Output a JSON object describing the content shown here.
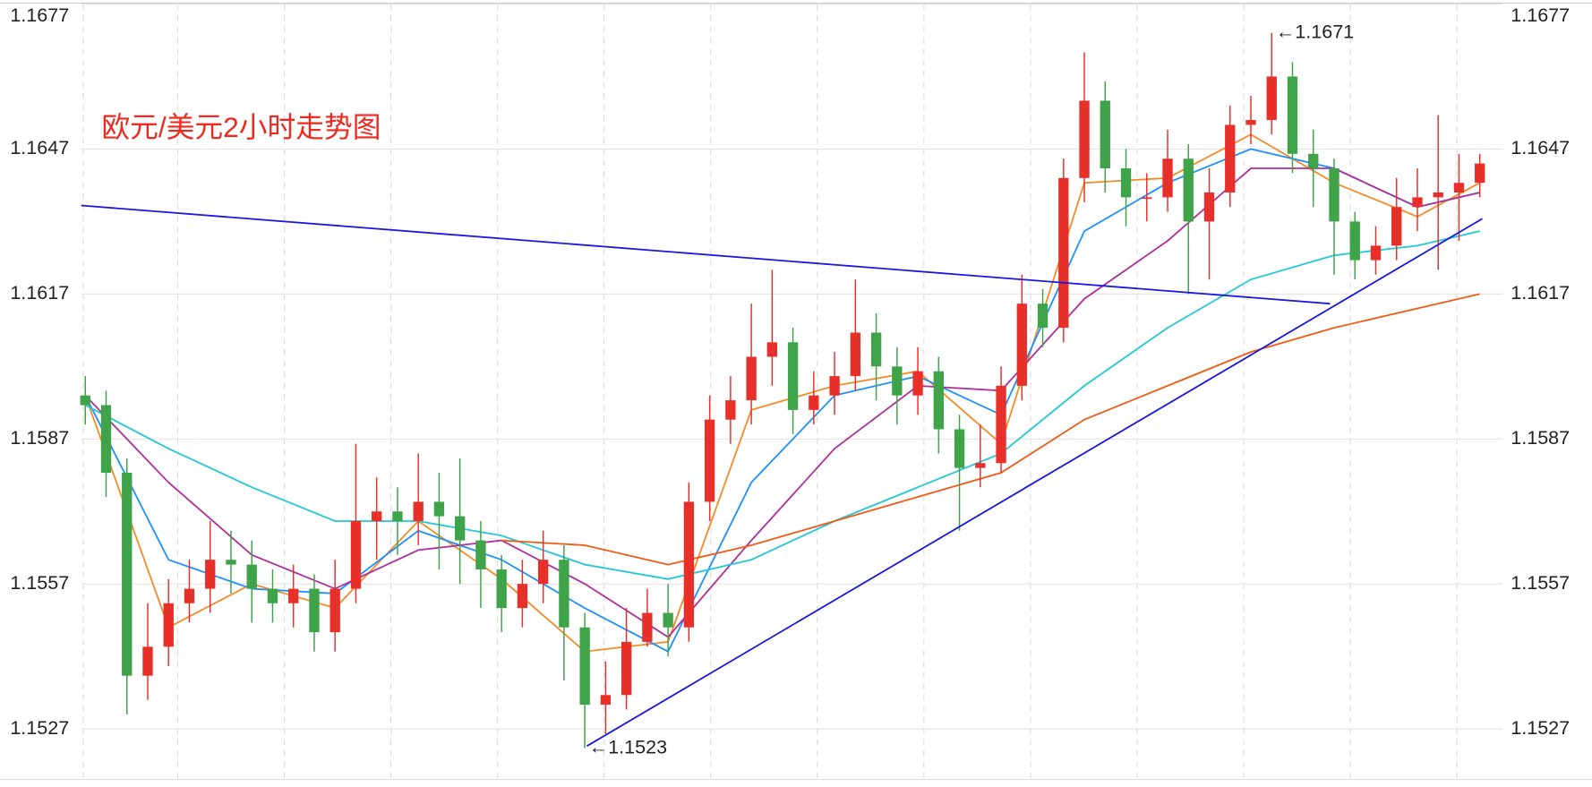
{
  "chart_data": {
    "type": "candlestick",
    "title": "欧元/美元2小时走势图",
    "ylim": [
      1.1527,
      1.1677
    ],
    "yticks": [
      1.1677,
      1.1647,
      1.1617,
      1.1587,
      1.1557,
      1.1527
    ],
    "grid": true,
    "up_color": "#e8302a",
    "down_color": "#3fa34a",
    "open": [
      1.1596,
      1.1594,
      1.158,
      1.1538,
      1.1544,
      1.1553,
      1.1556,
      1.1562,
      1.1561,
      1.1556,
      1.1553,
      1.1556,
      1.1547,
      1.1556,
      1.157,
      1.1572,
      1.157,
      1.1574,
      1.1571,
      1.1566,
      1.156,
      1.1552,
      1.1557,
      1.1562,
      1.1548,
      1.1532,
      1.1534,
      1.1545,
      1.1551,
      1.1548,
      1.1574,
      1.1591,
      1.1595,
      1.1604,
      1.1607,
      1.1593,
      1.1596,
      1.16,
      1.1609,
      1.1602,
      1.1596,
      1.1601,
      1.1589,
      1.1581,
      1.1582,
      1.1598,
      1.1615,
      1.161,
      1.1641,
      1.1657,
      1.1643,
      1.1637,
      1.1637,
      1.1645,
      1.1632,
      1.1638,
      1.1652,
      1.1653,
      1.1662,
      1.1646,
      1.1643,
      1.1632,
      1.1624,
      1.1627,
      1.1635,
      1.1637,
      1.1638,
      1.164
    ],
    "high": [
      1.16,
      1.1597,
      1.1583,
      1.1553,
      1.1558,
      1.1562,
      1.157,
      1.1568,
      1.1566,
      1.156,
      1.1561,
      1.1559,
      1.1562,
      1.1586,
      1.1579,
      1.1577,
      1.1584,
      1.158,
      1.1583,
      1.157,
      1.1563,
      1.1562,
      1.1568,
      1.1565,
      1.1551,
      1.1541,
      1.1552,
      1.1556,
      1.1557,
      1.1578,
      1.1596,
      1.16,
      1.1615,
      1.1622,
      1.161,
      1.1601,
      1.1605,
      1.162,
      1.1613,
      1.1606,
      1.1606,
      1.1604,
      1.1592,
      1.159,
      1.1602,
      1.1621,
      1.1618,
      1.1645,
      1.1667,
      1.1661,
      1.1647,
      1.1642,
      1.1651,
      1.1648,
      1.1643,
      1.1656,
      1.1658,
      1.1671,
      1.1665,
      1.1651,
      1.1645,
      1.1634,
      1.1631,
      1.1641,
      1.1643,
      1.1654,
      1.1646,
      1.1646
    ],
    "low": [
      1.159,
      1.1575,
      1.153,
      1.1533,
      1.154,
      1.1549,
      1.1551,
      1.1555,
      1.1549,
      1.1549,
      1.1548,
      1.1543,
      1.1543,
      1.1553,
      1.1562,
      1.1563,
      1.1565,
      1.156,
      1.1557,
      1.1552,
      1.1547,
      1.1548,
      1.1553,
      1.1537,
      1.1523,
      1.1526,
      1.1531,
      1.1544,
      1.1542,
      1.1545,
      1.157,
      1.1586,
      1.159,
      1.1598,
      1.1588,
      1.159,
      1.1592,
      1.1597,
      1.1595,
      1.159,
      1.1592,
      1.1584,
      1.1568,
      1.1577,
      1.158,
      1.1595,
      1.1606,
      1.1607,
      1.1636,
      1.1638,
      1.1631,
      1.1632,
      1.1634,
      1.1617,
      1.162,
      1.1635,
      1.1648,
      1.165,
      1.1642,
      1.1635,
      1.1621,
      1.162,
      1.1621,
      1.1624,
      1.163,
      1.1622,
      1.1628,
      1.1637
    ],
    "close": [
      1.1594,
      1.158,
      1.1538,
      1.1544,
      1.1553,
      1.1556,
      1.1562,
      1.1561,
      1.1556,
      1.1553,
      1.1556,
      1.1547,
      1.1556,
      1.157,
      1.1572,
      1.157,
      1.1574,
      1.1571,
      1.1566,
      1.156,
      1.1552,
      1.1557,
      1.1562,
      1.1548,
      1.1532,
      1.1534,
      1.1545,
      1.1551,
      1.1548,
      1.1574,
      1.1591,
      1.1595,
      1.1604,
      1.1607,
      1.1593,
      1.1596,
      1.16,
      1.1609,
      1.1602,
      1.1596,
      1.1601,
      1.1589,
      1.1581,
      1.1582,
      1.1598,
      1.1615,
      1.161,
      1.1641,
      1.1657,
      1.1643,
      1.1637,
      1.1637,
      1.1645,
      1.1632,
      1.1638,
      1.1652,
      1.1653,
      1.1662,
      1.1646,
      1.1643,
      1.1632,
      1.1624,
      1.1627,
      1.1635,
      1.1637,
      1.1638,
      1.164,
      1.1644
    ],
    "series": [
      {
        "color": "#f28c28",
        "x": [
          0,
          4,
          8,
          12,
          16,
          20,
          24,
          28,
          32,
          36,
          40,
          44,
          48,
          52,
          56,
          60,
          64,
          67
        ],
        "values": [
          1.1596,
          1.1548,
          1.1557,
          1.1552,
          1.157,
          1.1558,
          1.1543,
          1.1545,
          1.1593,
          1.1598,
          1.1601,
          1.1586,
          1.164,
          1.1641,
          1.165,
          1.164,
          1.1633,
          1.164
        ]
      },
      {
        "color": "#1e90ff",
        "x": [
          0,
          4,
          8,
          12,
          16,
          20,
          24,
          28,
          32,
          36,
          40,
          44,
          48,
          52,
          56,
          60,
          64,
          67
        ],
        "values": [
          1.1596,
          1.1562,
          1.1556,
          1.1555,
          1.1568,
          1.1562,
          1.1552,
          1.1543,
          1.1578,
          1.1596,
          1.16,
          1.1592,
          1.163,
          1.164,
          1.1647,
          1.1643,
          1.1635,
          1.1638
        ]
      },
      {
        "color": "#b0309a",
        "x": [
          0,
          4,
          8,
          12,
          16,
          20,
          24,
          28,
          32,
          36,
          40,
          44,
          48,
          52,
          56,
          60,
          64,
          67
        ],
        "values": [
          1.1596,
          1.1578,
          1.1563,
          1.1556,
          1.1564,
          1.1566,
          1.1557,
          1.1546,
          1.1566,
          1.1585,
          1.1598,
          1.1597,
          1.1616,
          1.1628,
          1.1643,
          1.1643,
          1.1635,
          1.1638
        ]
      },
      {
        "color": "#22c8d8",
        "x": [
          0,
          4,
          8,
          12,
          16,
          20,
          24,
          28,
          32,
          36,
          40,
          44,
          48,
          52,
          56,
          60,
          64,
          67
        ],
        "values": [
          1.1594,
          1.1585,
          1.1577,
          1.157,
          1.157,
          1.1567,
          1.1561,
          1.1558,
          1.1562,
          1.157,
          1.1577,
          1.1584,
          1.1598,
          1.161,
          1.162,
          1.1625,
          1.1627,
          1.163
        ]
      },
      {
        "color": "#f05a14",
        "x": [
          20,
          24,
          28,
          32,
          36,
          40,
          44,
          48,
          52,
          56,
          60,
          64,
          67
        ],
        "values": [
          1.1566,
          1.1565,
          1.1561,
          1.1565,
          1.157,
          1.1575,
          1.158,
          1.1591,
          1.1598,
          1.1605,
          1.161,
          1.1614,
          1.1617
        ]
      }
    ],
    "annotations": [
      {
        "label": "←1.1671",
        "value": 1.1671
      },
      {
        "label": "←1.1523",
        "value": 1.1523
      }
    ]
  }
}
